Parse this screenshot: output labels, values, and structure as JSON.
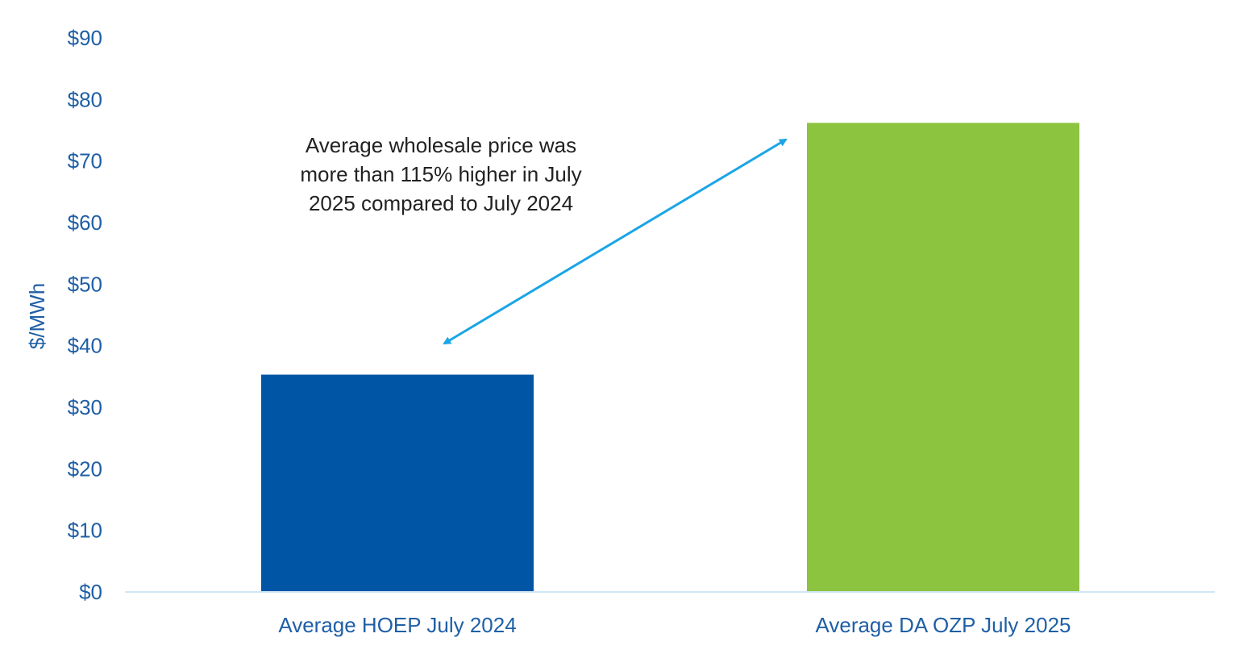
{
  "chart_data": {
    "type": "bar",
    "title": "",
    "xlabel": "",
    "ylabel": "$/MWh",
    "ylim": [
      0,
      90
    ],
    "y_tick_step": 10,
    "y_tick_labels": [
      "$0",
      "$10",
      "$20",
      "$30",
      "$40",
      "$50",
      "$60",
      "$70",
      "$80",
      "$90"
    ],
    "categories": [
      "Average HOEP July 2024",
      "Average DA OZP July 2025"
    ],
    "values": [
      35.3,
      76.2
    ],
    "bar_colors": [
      "#0055a5",
      "#8cc43f"
    ],
    "grid": false,
    "legend": "none",
    "annotation": {
      "lines": [
        "Average wholesale price was",
        "more than 115% higher in July",
        "2025 compared to July 2024"
      ],
      "arrow_color": "#1aa5e6",
      "arrow_style": "double-headed"
    },
    "colors": {
      "text": "#1f5fa6",
      "baseline": "#cfe6f5",
      "annotation_text": "#222222"
    }
  }
}
